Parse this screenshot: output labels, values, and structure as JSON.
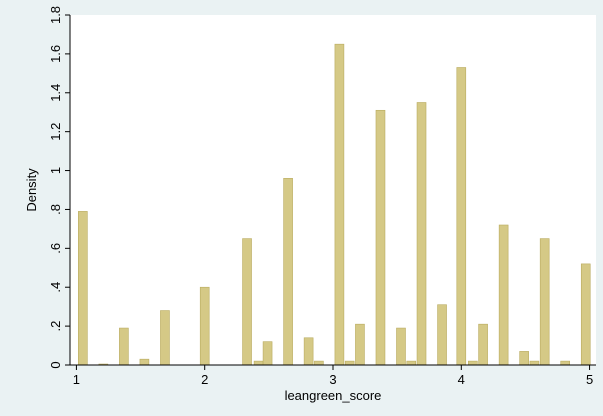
{
  "chart_data": {
    "type": "bar",
    "xlabel": "leangreen_score",
    "ylabel": "Density",
    "xlim": [
      0.95,
      5.05
    ],
    "ylim": [
      0,
      1.8
    ],
    "x_ticks": [
      1,
      2,
      3,
      4,
      5
    ],
    "y_ticks": [
      0,
      0.2,
      0.4,
      0.6,
      0.8,
      1,
      1.2,
      1.4,
      1.6,
      1.8
    ],
    "y_tick_labels": [
      "0",
      ".2",
      ".4",
      ".6",
      ".8",
      "1",
      "1.2",
      "1.4",
      "1.6",
      "1.8"
    ],
    "bar_width": 0.07,
    "bars": [
      {
        "x": 1.05,
        "y": 0.79
      },
      {
        "x": 1.21,
        "y": 0.005
      },
      {
        "x": 1.37,
        "y": 0.19
      },
      {
        "x": 1.53,
        "y": 0.03
      },
      {
        "x": 1.69,
        "y": 0.28
      },
      {
        "x": 2.0,
        "y": 0.4
      },
      {
        "x": 2.33,
        "y": 0.65
      },
      {
        "x": 2.42,
        "y": 0.02
      },
      {
        "x": 2.49,
        "y": 0.12
      },
      {
        "x": 2.65,
        "y": 0.96
      },
      {
        "x": 2.81,
        "y": 0.14
      },
      {
        "x": 2.89,
        "y": 0.02
      },
      {
        "x": 3.05,
        "y": 1.65
      },
      {
        "x": 3.13,
        "y": 0.02
      },
      {
        "x": 3.21,
        "y": 0.21
      },
      {
        "x": 3.37,
        "y": 1.31
      },
      {
        "x": 3.53,
        "y": 0.19
      },
      {
        "x": 3.61,
        "y": 0.02
      },
      {
        "x": 3.69,
        "y": 1.35
      },
      {
        "x": 3.85,
        "y": 0.31
      },
      {
        "x": 4.0,
        "y": 1.53
      },
      {
        "x": 4.09,
        "y": 0.02
      },
      {
        "x": 4.17,
        "y": 0.21
      },
      {
        "x": 4.33,
        "y": 0.72
      },
      {
        "x": 4.49,
        "y": 0.07
      },
      {
        "x": 4.57,
        "y": 0.02
      },
      {
        "x": 4.65,
        "y": 0.65
      },
      {
        "x": 4.81,
        "y": 0.02
      },
      {
        "x": 4.97,
        "y": 0.52
      }
    ],
    "bar_color": "#d5c986",
    "bar_edge_color": "#b9ab5f",
    "plot_background": "#ffffff",
    "outer_background": "#eaf2f3",
    "grid": false
  }
}
